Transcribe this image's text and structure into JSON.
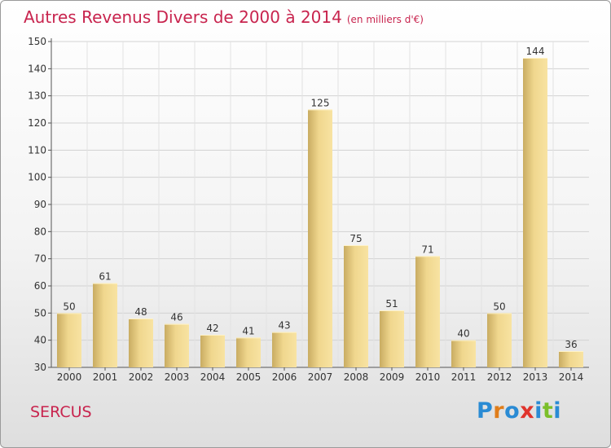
{
  "title": "Autres Revenus Divers de 2000 à 2014",
  "unit_note": "(en milliers d'€)",
  "commune": "SERCUS",
  "logo": {
    "text": "Proxiti",
    "colors": [
      "#2a8bd4",
      "#e07d1a",
      "#2a8bd4",
      "#e0342c",
      "#2a8bd4",
      "#7bbf2a",
      "#2a8bd4"
    ]
  },
  "colors": {
    "title": "#c8244e",
    "bar_light": "#f8e3a2",
    "bar_dark": "#c9ac62",
    "grid": "#d0d0d0"
  },
  "chart_data": {
    "type": "bar",
    "title": "Autres Revenus Divers de 2000 à 2014",
    "categories": [
      "2000",
      "2001",
      "2002",
      "2003",
      "2004",
      "2005",
      "2006",
      "2007",
      "2008",
      "2009",
      "2010",
      "2011",
      "2012",
      "2013",
      "2014"
    ],
    "values": [
      50,
      61,
      48,
      46,
      42,
      41,
      43,
      125,
      75,
      51,
      71,
      40,
      50,
      144,
      36
    ],
    "ylim": [
      30,
      150
    ],
    "yticks": [
      30,
      40,
      50,
      60,
      70,
      80,
      90,
      100,
      110,
      120,
      130,
      140,
      150
    ],
    "grid": true,
    "data_labels": true
  }
}
